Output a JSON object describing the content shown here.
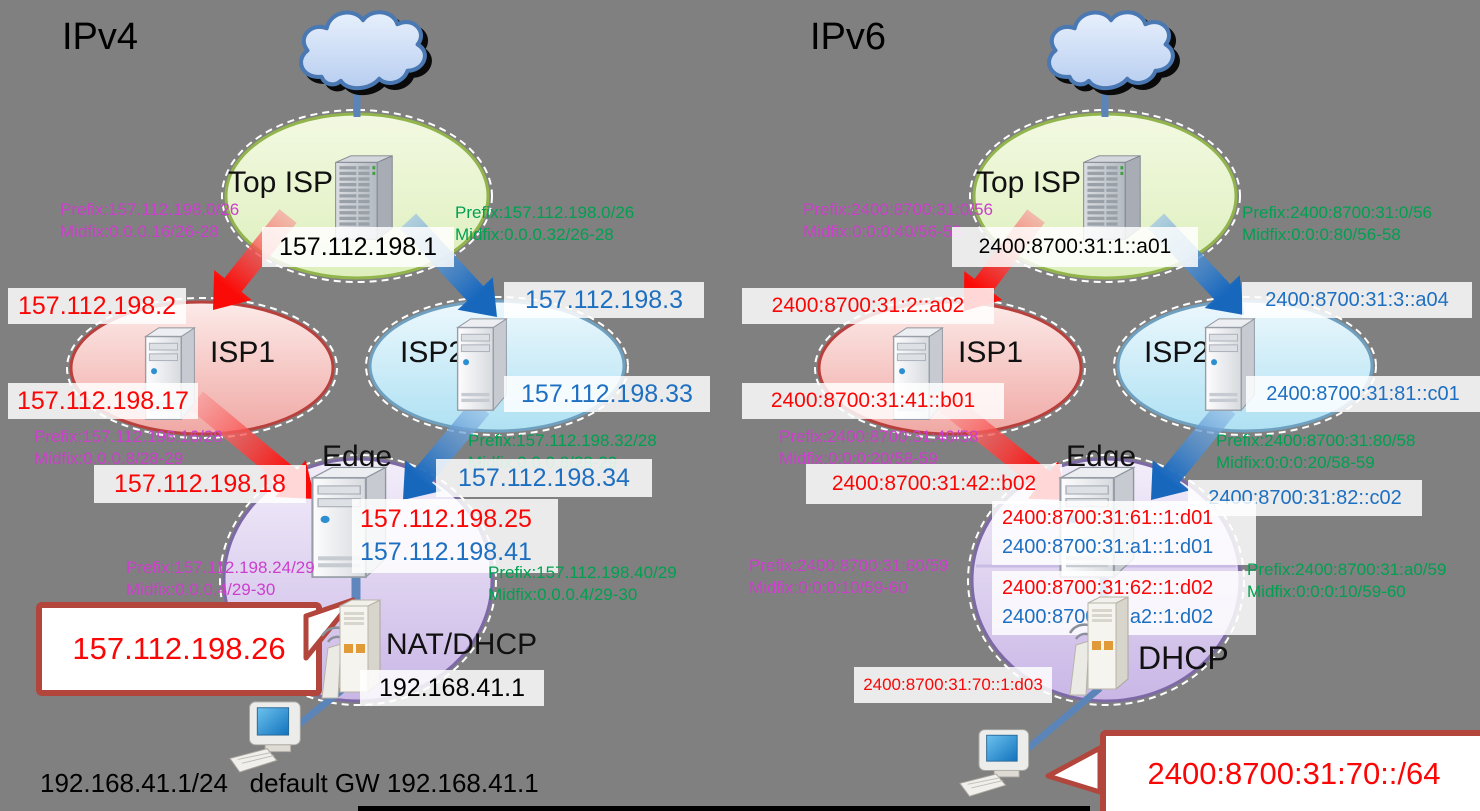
{
  "canvas": {
    "bg": "#808080"
  },
  "colors": {
    "red_text": "#fb0505",
    "blue_text": "#1d6fc1",
    "magenta_text": "#cc3fcc",
    "green_text": "#00a050",
    "black_text": "#000000",
    "arrow_red": "#fb0b07",
    "arrow_red_light": "rgba(248,150,150,0.6)",
    "arrow_blue": "#1767bd",
    "arrow_blue_light": "rgba(150,190,230,0.65)",
    "callout_border": "#b2453c",
    "ellipse_green": "#dff0bf",
    "ellipse_red": "#f0a8a4",
    "ellipse_blue": "#b0e2f3",
    "ellipse_purple": "#cab7e7"
  },
  "ipv4": {
    "title": "IPv4",
    "top_isp": {
      "label": "Top ISP",
      "router_ip": "157.112.198.1",
      "prefix_left": "Prefix:157.112.198.0/26",
      "midfix_left": "Midfix:0.0.0.16/26-28",
      "prefix_right": "Prefix:157.112.198.0/26",
      "midfix_right": "Midfix:0.0.0.32/26-28"
    },
    "isp1": {
      "label": "ISP1",
      "uplink_ip": "157.112.198.2",
      "downlink_ip": "157.112.198.17",
      "prefix": "Prefix:157.112.198.16/28",
      "midfix": "Midfix:0.0.0.8/28-29"
    },
    "isp2": {
      "label": "ISP2",
      "uplink_ip": "157.112.198.3",
      "downlink_ip": "157.112.198.33",
      "prefix": "Prefix:157.112.198.32/28",
      "midfix": "Midfix:0.0.0.8/28-29"
    },
    "edge": {
      "label": "Edge",
      "wan_ip_isp1": "157.112.198.18",
      "wan_ip_isp2": "157.112.198.34",
      "lan_ip_red": "157.112.198.25",
      "lan_ip_blue": "157.112.198.41",
      "prefix_left": "Prefix:157.112.198.24/29",
      "midfix_left": "Midfix:0.0.0.4/29-30",
      "prefix_right": "Prefix:157.112.198.40/29",
      "midfix_right": "Midfix:0.0.0.4/29-30"
    },
    "nat": {
      "label": "NAT/DHCP",
      "callout_wan_ip": "157.112.198.26",
      "lan_ip": "192.168.41.1"
    },
    "client_note": "192.168.41.1/24   default GW 192.168.41.1"
  },
  "ipv6": {
    "title": "IPv6",
    "top_isp": {
      "label": "Top ISP",
      "router_ip": "2400:8700:31:1::a01",
      "prefix_left": "Prefix:2400:8700:31:0/56",
      "midfix_left": "Midfix:0:0:0:40/56-58",
      "prefix_right": "Prefix:2400:8700:31:0/56",
      "midfix_right": "Midfix:0:0:0:80/56-58"
    },
    "isp1": {
      "label": "ISP1",
      "uplink_ip": "2400:8700:31:2::a02",
      "downlink_ip": "2400:8700:31:41::b01",
      "prefix": "Prefix:2400:8700:31:40/58",
      "midfix": "Midfix:0:0:0:20/58-59"
    },
    "isp2": {
      "label": "ISP2",
      "uplink_ip": "2400:8700:31:3::a04",
      "downlink_ip": "2400:8700:31:81::c01",
      "prefix": "Prefix:2400:8700:31:80/58",
      "midfix": "Midfix:0:0:0:20/58-59"
    },
    "edge": {
      "label": "Edge",
      "wan_ip_isp1": "2400:8700:31:42::b02",
      "wan_ip_isp2": "2400:8700:31:82::c02",
      "subnet1_red": "2400:8700:31:61::1:d01",
      "subnet1_blue": "2400:8700:31:a1::1:d01",
      "subnet2_red": "2400:8700:31:62::1:d02",
      "subnet2_blue": "2400:8700:31:a2::1:d02",
      "prefix_left": "Prefix:2400:8700:31:60/59",
      "midfix_left": "Midfix:0:0:0:10/59-60",
      "prefix_right": "Prefix:2400:8700:31:a0/59",
      "midfix_right": "Midfix:0:0:0:10/59-60"
    },
    "dhcp": {
      "label": "DHCP",
      "downlink_ip": "2400:8700:31:70::1:d03",
      "callout_prefix": "2400:8700:31:70::/64"
    }
  }
}
